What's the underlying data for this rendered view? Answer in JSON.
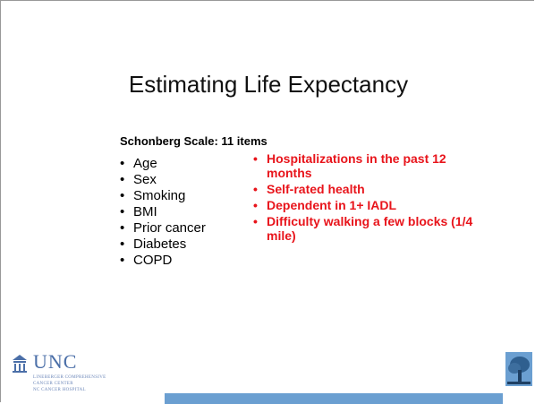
{
  "slide": {
    "title": "Estimating Life Expectancy",
    "subtitle": "Schonberg Scale: 11 items",
    "left_list": [
      "Age",
      "Sex",
      "Smoking",
      "BMI",
      "Prior cancer",
      "Diabetes",
      "COPD"
    ],
    "right_list": [
      "Hospitalizations in the past 12 months",
      "Self-rated health",
      "Dependent in 1+ IADL",
      "Difficulty walking a few blocks (1/4 mile)"
    ],
    "logo": {
      "name": "UNC",
      "line1": "LINEBERGER COMPREHENSIVE",
      "line2": "CANCER CENTER",
      "line3": "NC CANCER HOSPITAL"
    }
  }
}
